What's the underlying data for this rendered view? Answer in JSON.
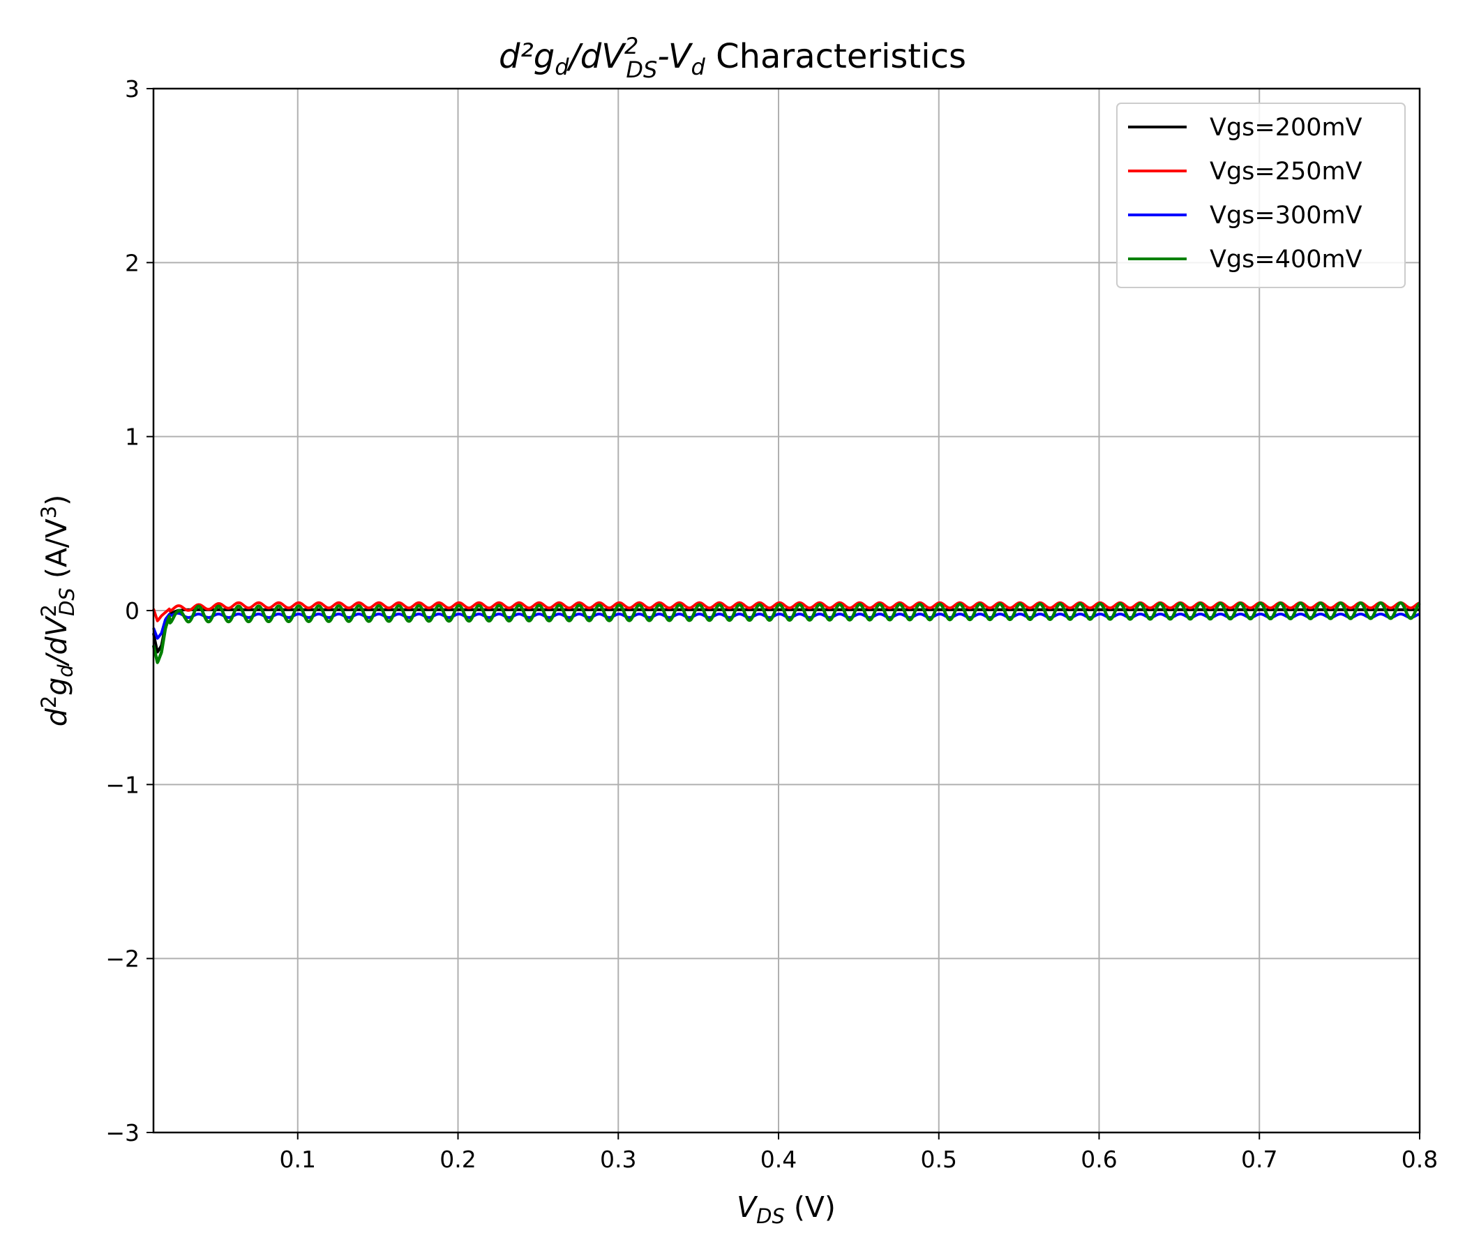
{
  "chart_data": {
    "type": "line",
    "title": "d²g_d/dV²_DS-V_d Characteristics",
    "title_parts": {
      "numerator": "d²g",
      "sub1": "d",
      "slash": "/dV",
      "sup2": "2",
      "sub2": "DS",
      "dash": "-V",
      "sub3": "d",
      "rest": " Characteristics"
    },
    "xlabel": "V_DS (V)",
    "xlabel_parts": {
      "var": "V",
      "sub": "DS",
      "unit": " (V)"
    },
    "ylabel": "d²g_d/dV²_DS (A/V³)",
    "ylabel_parts": {
      "a": "d",
      "sup1": "2",
      "b": "g",
      "sub1": "d",
      "c": "/dV",
      "sup2": "2",
      "sub2": "DS",
      "unit": " (A/V",
      "sup3": "3",
      "close": ")"
    },
    "xlim": [
      0.01,
      0.8
    ],
    "ylim": [
      -3,
      3
    ],
    "xticks": [
      0.1,
      0.2,
      0.3,
      0.4,
      0.5,
      0.6,
      0.7,
      0.8
    ],
    "xtick_labels": [
      "0.1",
      "0.2",
      "0.3",
      "0.4",
      "0.5",
      "0.6",
      "0.7",
      "0.8"
    ],
    "yticks": [
      3,
      2,
      1,
      0,
      -1,
      -2,
      -3
    ],
    "ytick_labels": [
      "3",
      "2",
      "1",
      "0",
      "−1",
      "−2",
      "−3"
    ],
    "grid": true,
    "legend_position": "top-right",
    "series": [
      {
        "name": "Vgs=200mV",
        "color": "#000000",
        "points": [
          [
            0.01,
            -0.13
          ],
          [
            0.0125,
            -0.24
          ],
          [
            0.015,
            -0.2
          ],
          [
            0.0175,
            -0.08
          ],
          [
            0.02,
            -0.02
          ],
          [
            0.025,
            0.0
          ],
          [
            0.03,
            0.005
          ],
          [
            0.04,
            0.005
          ],
          [
            0.8,
            0.005
          ]
        ],
        "oscillation": 0.0
      },
      {
        "name": "Vgs=250mV",
        "color": "#ff0000",
        "points": [
          [
            0.01,
            0.01
          ],
          [
            0.0125,
            -0.06
          ],
          [
            0.015,
            -0.03
          ],
          [
            0.02,
            0.01
          ],
          [
            0.04,
            0.02
          ],
          [
            0.06,
            0.03
          ],
          [
            0.8,
            0.03
          ]
        ],
        "oscillation": 0.015
      },
      {
        "name": "Vgs=300mV",
        "color": "#0000ff",
        "points": [
          [
            0.01,
            -0.1
          ],
          [
            0.0125,
            -0.16
          ],
          [
            0.015,
            -0.13
          ],
          [
            0.0175,
            -0.05
          ],
          [
            0.02,
            -0.02
          ],
          [
            0.03,
            -0.03
          ],
          [
            0.06,
            -0.03
          ],
          [
            0.8,
            -0.03
          ]
        ],
        "oscillation": 0.01
      },
      {
        "name": "Vgs=400mV",
        "color": "#008000",
        "points": [
          [
            0.01,
            -0.2
          ],
          [
            0.0125,
            -0.3
          ],
          [
            0.015,
            -0.24
          ],
          [
            0.0175,
            -0.1
          ],
          [
            0.02,
            -0.03
          ],
          [
            0.025,
            -0.05
          ],
          [
            0.03,
            -0.02
          ],
          [
            0.8,
            0.0
          ]
        ],
        "oscillation": 0.045
      }
    ]
  }
}
